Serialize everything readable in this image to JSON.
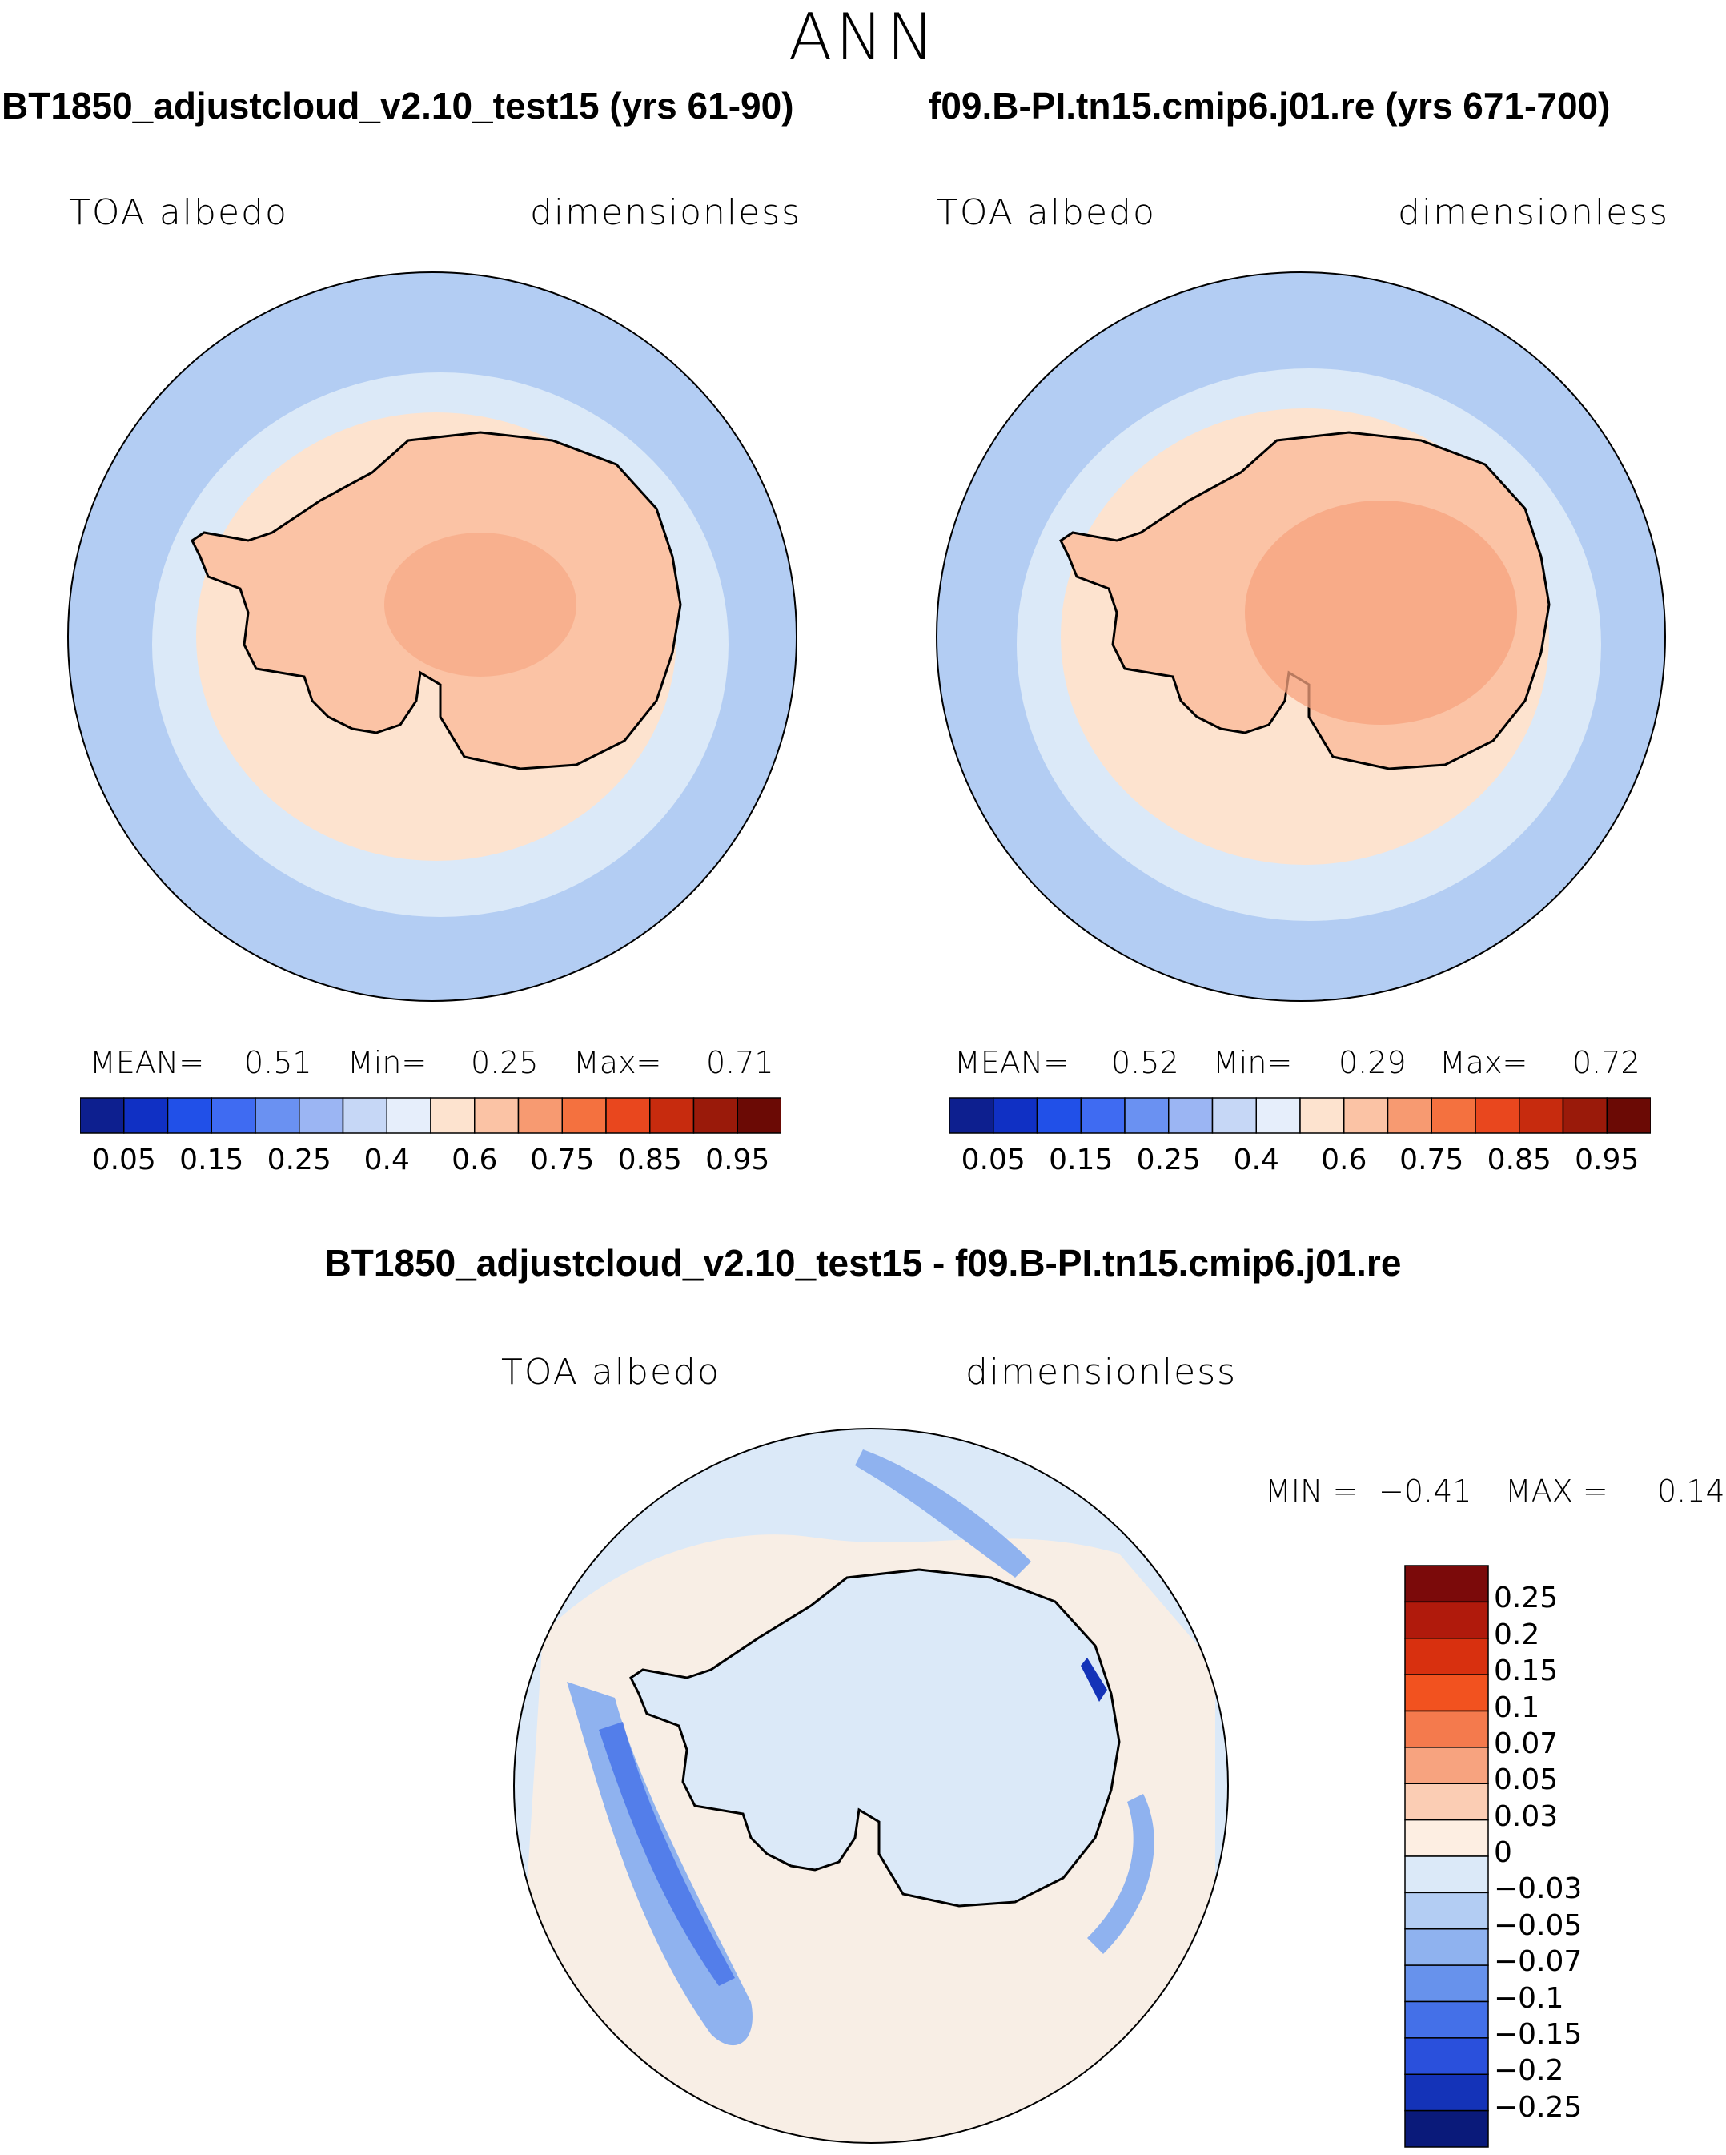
{
  "title": "ANN",
  "panels": [
    {
      "case_label": "BT1850_adjustcloud_v2.10_test15 (yrs 61-90)",
      "variable": "TOA albedo",
      "units": "dimensionless",
      "stats": {
        "mean_label": "MEAN=",
        "mean": "0.51",
        "min_label": "Min=",
        "min": "0.25",
        "max_label": "Max=",
        "max": "0.71"
      },
      "colorbar": {
        "colors": [
          "#0d1f8f",
          "#1030c4",
          "#2150e8",
          "#3f6bf2",
          "#6a91f2",
          "#9bb5f3",
          "#c6d7f6",
          "#e6eefb",
          "#fde3cf",
          "#fbc3a5",
          "#f79a71",
          "#f4713f",
          "#e9471e",
          "#c72b0e",
          "#9a1a0a",
          "#6b0a05"
        ],
        "labels": [
          "0.05",
          "0.15",
          "0.25",
          "0.4",
          "0.6",
          "0.75",
          "0.85",
          "0.95"
        ]
      }
    },
    {
      "case_label": "f09.B-PI.tn15.cmip6.j01.re (yrs 671-700)",
      "variable": "TOA albedo",
      "units": "dimensionless",
      "stats": {
        "mean_label": "MEAN=",
        "mean": "0.52",
        "min_label": "Min=",
        "min": "0.29",
        "max_label": "Max=",
        "max": "0.72"
      },
      "colorbar": {
        "colors": [
          "#0d1f8f",
          "#1030c4",
          "#2150e8",
          "#3f6bf2",
          "#6a91f2",
          "#9bb5f3",
          "#c6d7f6",
          "#e6eefb",
          "#fde3cf",
          "#fbc3a5",
          "#f79a71",
          "#f4713f",
          "#e9471e",
          "#c72b0e",
          "#9a1a0a",
          "#6b0a05"
        ],
        "labels": [
          "0.05",
          "0.15",
          "0.25",
          "0.4",
          "0.6",
          "0.75",
          "0.85",
          "0.95"
        ]
      }
    }
  ],
  "diff": {
    "case_label": "BT1850_adjustcloud_v2.10_test15 - f09.B-PI.tn15.cmip6.j01.re",
    "variable": "TOA albedo",
    "units": "dimensionless",
    "stats": {
      "min_label": "MIN =",
      "min": "−0.41",
      "max_label": "MAX =",
      "max": "0.14"
    },
    "colorbar": {
      "colors": [
        "#7b0a0a",
        "#b01a0c",
        "#d8300f",
        "#f2521f",
        "#f47a4d",
        "#f7a37f",
        "#fbcdb4",
        "#fdeee2",
        "#dbe9f8",
        "#b3cdf3",
        "#8fb2ef",
        "#6792ec",
        "#4470e8",
        "#2a50dc",
        "#1433b8",
        "#0a1a7a"
      ],
      "labels": [
        "0.25",
        "0.2",
        "0.15",
        "0.1",
        "0.07",
        "0.05",
        "0.03",
        "0",
        "−0.03",
        "−0.05",
        "−0.07",
        "−0.1",
        "−0.15",
        "−0.2",
        "−0.25"
      ]
    }
  },
  "chart_data": [
    {
      "type": "heatmap",
      "title": "BT1850_adjustcloud_v2.10_test15 (yrs 61-90)",
      "field": "TOA albedo",
      "units": "dimensionless",
      "projection": "south polar stereographic",
      "levels": [
        0.05,
        0.1,
        0.15,
        0.2,
        0.25,
        0.3,
        0.4,
        0.5,
        0.6,
        0.7,
        0.75,
        0.8,
        0.85,
        0.9,
        0.95
      ],
      "mean": 0.51,
      "min": 0.25,
      "max": 0.71
    },
    {
      "type": "heatmap",
      "title": "f09.B-PI.tn15.cmip6.j01.re (yrs 671-700)",
      "field": "TOA albedo",
      "units": "dimensionless",
      "projection": "south polar stereographic",
      "levels": [
        0.05,
        0.1,
        0.15,
        0.2,
        0.25,
        0.3,
        0.4,
        0.5,
        0.6,
        0.7,
        0.75,
        0.8,
        0.85,
        0.9,
        0.95
      ],
      "mean": 0.52,
      "min": 0.29,
      "max": 0.72
    },
    {
      "type": "heatmap",
      "title": "BT1850_adjustcloud_v2.10_test15 - f09.B-PI.tn15.cmip6.j01.re",
      "field": "TOA albedo",
      "units": "dimensionless",
      "projection": "south polar stereographic",
      "levels": [
        -0.25,
        -0.2,
        -0.15,
        -0.1,
        -0.07,
        -0.05,
        -0.03,
        0,
        0.03,
        0.05,
        0.07,
        0.1,
        0.15,
        0.2,
        0.25
      ],
      "min": -0.41,
      "max": 0.14
    }
  ]
}
